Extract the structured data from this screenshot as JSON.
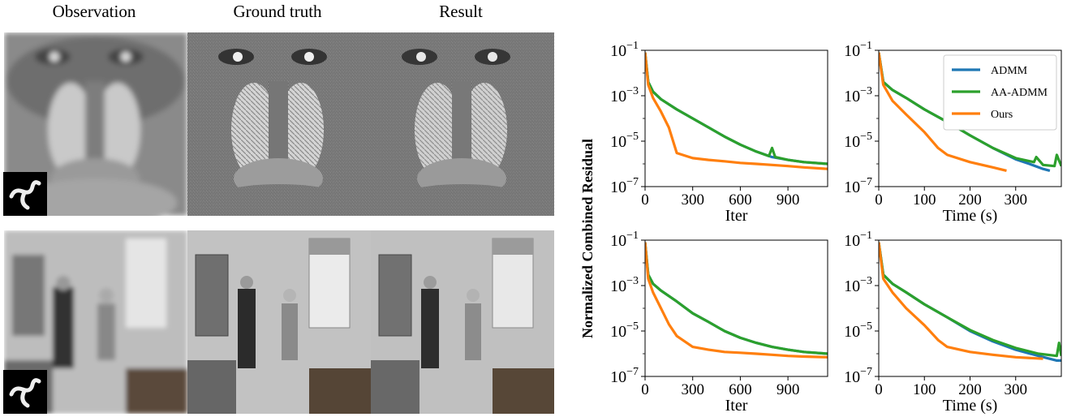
{
  "columns": [
    "Observation",
    "Ground truth",
    "Result"
  ],
  "images": [
    {
      "row": "baboon",
      "icons": [
        "blurred-baboon-image",
        "sharp-baboon-image",
        "restored-baboon-image"
      ],
      "kernel_icon": "blur-kernel-icon"
    },
    {
      "row": "room",
      "icons": [
        "blurred-room-image",
        "sharp-room-image",
        "restored-room-image"
      ],
      "kernel_icon": "blur-kernel-icon"
    }
  ],
  "ylabel_shared": "Normalized Combined Residual",
  "legend": [
    {
      "name": "ADMM",
      "color": "#1f77b4"
    },
    {
      "name": "AA-ADMM",
      "color": "#2ca02c"
    },
    {
      "name": "Ours",
      "color": "#ff7f0e"
    }
  ],
  "chart_data": [
    {
      "type": "line",
      "xlabel": "Iter",
      "ylabel": "",
      "log_y": true,
      "xlim": [
        0,
        1150
      ],
      "ylim": [
        1e-07,
        0.1
      ],
      "xticks": [
        "0",
        "300",
        "600",
        "900"
      ],
      "yticks": [
        "10^-1",
        "10^-3",
        "10^-5",
        "10^-7"
      ],
      "series": [
        {
          "name": "ADMM",
          "color": "#1f77b4",
          "x": [
            0,
            20,
            50,
            100,
            200,
            300,
            400,
            500,
            600,
            700,
            800,
            900,
            1000,
            1150
          ],
          "y": [
            0.08,
            0.004,
            0.0015,
            0.0007,
            0.00025,
            0.0001,
            4e-05,
            1.6e-05,
            7e-06,
            3.5e-06,
            2e-06,
            1.5e-06,
            1.2e-06,
            1e-06
          ]
        },
        {
          "name": "AA-ADMM",
          "color": "#2ca02c",
          "x": [
            0,
            20,
            50,
            100,
            200,
            300,
            400,
            500,
            600,
            700,
            780,
            800,
            820,
            900,
            1000,
            1150
          ],
          "y": [
            0.08,
            0.004,
            0.0015,
            0.0007,
            0.00025,
            0.0001,
            4e-05,
            1.6e-05,
            7e-06,
            3.5e-06,
            2.2e-06,
            5e-06,
            2e-06,
            1.5e-06,
            1.2e-06,
            1e-06
          ]
        },
        {
          "name": "Ours",
          "color": "#ff7f0e",
          "x": [
            0,
            20,
            50,
            100,
            150,
            200,
            300,
            400,
            500,
            600,
            700,
            800,
            900,
            1000,
            1150
          ],
          "y": [
            0.08,
            0.003,
            0.0008,
            0.0002,
            4e-05,
            3e-06,
            1.8e-06,
            1.5e-06,
            1.3e-06,
            1.1e-06,
            1e-06,
            9e-07,
            8e-07,
            7e-07,
            6e-07
          ]
        }
      ]
    },
    {
      "type": "line",
      "xlabel": "Time (s)",
      "ylabel": "",
      "log_y": true,
      "xlim": [
        0,
        400
      ],
      "ylim": [
        1e-07,
        0.1
      ],
      "xticks": [
        "0",
        "100",
        "200",
        "300"
      ],
      "yticks": [
        "10^-1",
        "10^-3",
        "10^-5",
        "10^-7"
      ],
      "series": [
        {
          "name": "ADMM",
          "color": "#1f77b4",
          "x": [
            0,
            10,
            30,
            60,
            100,
            150,
            200,
            250,
            300,
            330,
            360,
            375
          ],
          "y": [
            0.08,
            0.004,
            0.0018,
            0.0008,
            0.00025,
            7e-05,
            1.8e-05,
            5e-06,
            1.6e-06,
            1e-06,
            6e-07,
            5e-07
          ]
        },
        {
          "name": "AA-ADMM",
          "color": "#2ca02c",
          "x": [
            0,
            10,
            30,
            60,
            100,
            150,
            200,
            250,
            300,
            340,
            345,
            360,
            385,
            390,
            400
          ],
          "y": [
            0.08,
            0.004,
            0.0018,
            0.0008,
            0.00025,
            7e-05,
            1.8e-05,
            5e-06,
            1.8e-06,
            1.2e-06,
            2e-06,
            9e-07,
            8e-07,
            2.5e-06,
            8e-07
          ]
        },
        {
          "name": "Ours",
          "color": "#ff7f0e",
          "x": [
            0,
            10,
            30,
            60,
            100,
            130,
            150,
            200,
            250,
            280
          ],
          "y": [
            0.08,
            0.003,
            0.0006,
            0.00015,
            2.5e-05,
            5e-06,
            2.5e-06,
            1.2e-06,
            7e-07,
            5e-07
          ]
        }
      ]
    },
    {
      "type": "line",
      "xlabel": "Iter",
      "ylabel": "",
      "log_y": true,
      "xlim": [
        0,
        1150
      ],
      "ylim": [
        1e-07,
        0.1
      ],
      "xticks": [
        "0",
        "300",
        "600",
        "900"
      ],
      "yticks": [
        "10^-1",
        "10^-3",
        "10^-5",
        "10^-7"
      ],
      "series": [
        {
          "name": "ADMM",
          "color": "#1f77b4",
          "x": [
            0,
            20,
            50,
            100,
            200,
            300,
            400,
            500,
            600,
            700,
            800,
            900,
            1000,
            1150
          ],
          "y": [
            0.08,
            0.003,
            0.0012,
            0.0006,
            0.0002,
            6e-05,
            2.5e-05,
            1e-05,
            5e-06,
            3e-06,
            2e-06,
            1.5e-06,
            1.2e-06,
            1e-06
          ]
        },
        {
          "name": "AA-ADMM",
          "color": "#2ca02c",
          "x": [
            0,
            20,
            50,
            100,
            200,
            300,
            400,
            500,
            600,
            700,
            800,
            900,
            1000,
            1150
          ],
          "y": [
            0.08,
            0.003,
            0.0012,
            0.0006,
            0.0002,
            6e-05,
            2.5e-05,
            1e-05,
            5e-06,
            3e-06,
            2e-06,
            1.5e-06,
            1.2e-06,
            1e-06
          ]
        },
        {
          "name": "Ours",
          "color": "#ff7f0e",
          "x": [
            0,
            20,
            50,
            100,
            150,
            200,
            300,
            400,
            500,
            600,
            700,
            800,
            900,
            1000,
            1150
          ],
          "y": [
            0.08,
            0.002,
            0.0005,
            0.0001,
            2e-05,
            6e-06,
            2e-06,
            1.5e-06,
            1.2e-06,
            1.1e-06,
            1e-06,
            9e-07,
            8e-07,
            7.5e-07,
            7e-07
          ]
        }
      ]
    },
    {
      "type": "line",
      "xlabel": "Time (s)",
      "ylabel": "",
      "log_y": true,
      "xlim": [
        0,
        400
      ],
      "ylim": [
        1e-07,
        0.1
      ],
      "xticks": [
        "0",
        "100",
        "200",
        "300"
      ],
      "yticks": [
        "10^-1",
        "10^-3",
        "10^-5",
        "10^-7"
      ],
      "series": [
        {
          "name": "ADMM",
          "color": "#1f77b4",
          "x": [
            0,
            10,
            30,
            60,
            100,
            150,
            200,
            250,
            300,
            350,
            390,
            400
          ],
          "y": [
            0.08,
            0.003,
            0.0012,
            0.0005,
            0.00015,
            4e-05,
            1e-05,
            3.5e-06,
            1.5e-06,
            8e-07,
            5e-07,
            5e-07
          ]
        },
        {
          "name": "AA-ADMM",
          "color": "#2ca02c",
          "x": [
            0,
            10,
            30,
            60,
            100,
            150,
            200,
            250,
            300,
            350,
            390,
            395,
            400
          ],
          "y": [
            0.08,
            0.003,
            0.0012,
            0.0005,
            0.00015,
            4e-05,
            1.1e-05,
            4e-06,
            1.8e-06,
            1e-06,
            8e-07,
            3e-06,
            8e-07
          ]
        },
        {
          "name": "Ours",
          "color": "#ff7f0e",
          "x": [
            0,
            10,
            30,
            60,
            100,
            130,
            150,
            200,
            250,
            300,
            360
          ],
          "y": [
            0.08,
            0.002,
            0.0005,
            0.0001,
            1.8e-05,
            4e-06,
            2e-06,
            1.2e-06,
            9e-07,
            7e-07,
            6e-07
          ]
        }
      ]
    }
  ]
}
